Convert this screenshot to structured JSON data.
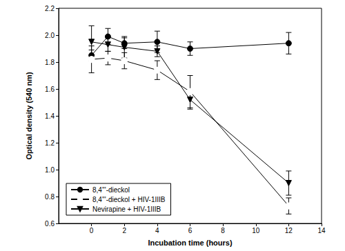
{
  "chart_data": {
    "type": "line",
    "x_label": "Incubation time (hours)",
    "y_label": "Optical density (540 nm)",
    "xlim": [
      -2,
      14
    ],
    "xticks": [
      0,
      2,
      4,
      6,
      8,
      10,
      12,
      14
    ],
    "ylim": [
      0.6,
      2.2
    ],
    "yticks": [
      0.6,
      0.8,
      {
        "value": 1,
        "label": "1.0"
      },
      1.2,
      1.4,
      1.6,
      1.8,
      {
        "value": 2,
        "label": "2.0"
      },
      2.2
    ],
    "grid": false,
    "legend": "lower left",
    "series": [
      {
        "name": "8,4'''-dieckol",
        "color": "#000000",
        "marker": "circle",
        "x": [
          0,
          1,
          2,
          4,
          6,
          12
        ],
        "values": [
          1.85,
          1.99,
          1.94,
          1.95,
          1.9,
          1.94
        ],
        "errors": [
          0.04,
          0.06,
          0.04,
          0.08,
          0.05,
          0.08
        ]
      },
      {
        "name": "8,4'''-dieckol + HIV-1IIIB",
        "color": "#000000",
        "marker": "open_circle",
        "x": [
          0,
          1,
          2,
          4,
          6,
          12
        ],
        "values": [
          1.82,
          1.83,
          1.81,
          1.74,
          1.58,
          0.73
        ],
        "errors": [
          0.1,
          0.05,
          0.06,
          0.07,
          0.12,
          0.06
        ]
      },
      {
        "name": "Nevirapine + HIV-1IIIB",
        "color": "#000000",
        "marker": "triangle_down",
        "x": [
          0,
          1,
          2,
          4,
          6,
          12
        ],
        "values": [
          1.95,
          1.93,
          1.91,
          1.88,
          1.52,
          0.9
        ],
        "errors": [
          0.12,
          0.05,
          0.08,
          0.04,
          0.07,
          0.09
        ]
      }
    ]
  }
}
